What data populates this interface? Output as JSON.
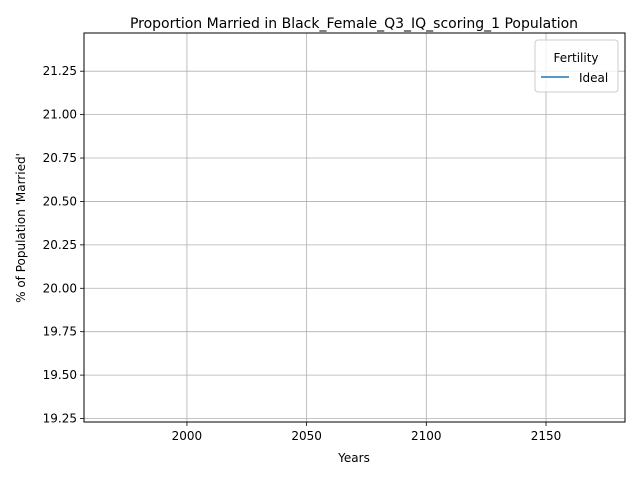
{
  "chart_data": {
    "type": "line",
    "title": "Proportion Married in Black_Female_Q3_IQ_scoring_1 Population",
    "xlabel": "Years",
    "ylabel": "% of Population 'Married'",
    "xlim": [
      1957,
      2183
    ],
    "ylim": [
      19.23,
      21.47
    ],
    "x_ticks": [
      2000,
      2050,
      2100,
      2150
    ],
    "x_tick_labels": [
      "2000",
      "2050",
      "2100",
      "2150"
    ],
    "y_ticks": [
      19.25,
      19.5,
      19.75,
      20.0,
      20.25,
      20.5,
      20.75,
      21.0,
      21.25
    ],
    "y_tick_labels": [
      "19.25",
      "19.50",
      "19.75",
      "20.00",
      "20.25",
      "20.50",
      "20.75",
      "21.00",
      "21.25"
    ],
    "grid": true,
    "legend": {
      "title": "Fertility",
      "placement": "top-right",
      "entries": [
        {
          "label": "Ideal",
          "color": "#1f77b4"
        }
      ]
    },
    "series": [
      {
        "name": "Ideal",
        "color": "#1f77b4",
        "x": [],
        "y": []
      }
    ]
  }
}
